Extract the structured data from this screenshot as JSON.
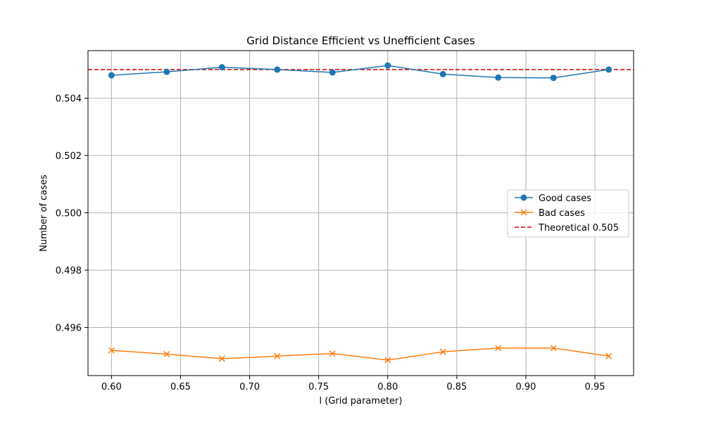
{
  "chart_data": {
    "type": "line",
    "title": "Grid Distance Efficient vs Unefficient Cases",
    "xlabel": "l (Grid parameter)",
    "ylabel": "Number of cases",
    "x": [
      0.6,
      0.64,
      0.68,
      0.72,
      0.76,
      0.8,
      0.84,
      0.88,
      0.92,
      0.96
    ],
    "xlim": [
      0.583,
      0.978
    ],
    "ylim": [
      0.49432,
      0.50566
    ],
    "xticks": [
      0.6,
      0.65,
      0.7,
      0.75,
      0.8,
      0.85,
      0.9,
      0.95
    ],
    "xtick_labels": [
      "0.60",
      "0.65",
      "0.70",
      "0.75",
      "0.80",
      "0.85",
      "0.90",
      "0.95"
    ],
    "yticks": [
      0.496,
      0.498,
      0.5,
      0.502,
      0.504
    ],
    "ytick_labels": [
      "0.496",
      "0.498",
      "0.500",
      "0.502",
      "0.504"
    ],
    "grid": true,
    "legend_position": "center-right",
    "series": [
      {
        "name": "Good cases",
        "values": [
          0.5048,
          0.50492,
          0.50508,
          0.505,
          0.5049,
          0.50514,
          0.50484,
          0.50472,
          0.50471,
          0.505
        ],
        "color": "#1f77b4",
        "marker": "circle",
        "line_style": "solid"
      },
      {
        "name": "Bad cases",
        "values": [
          0.4952,
          0.49507,
          0.49491,
          0.495,
          0.49509,
          0.49486,
          0.49515,
          0.49528,
          0.49528,
          0.495
        ],
        "color": "#ff7f0e",
        "marker": "x",
        "line_style": "solid"
      }
    ],
    "reference_line": {
      "name": "Theoretical 0.505",
      "y": 0.505,
      "color": "#d62728",
      "line_style": "dashed"
    }
  }
}
